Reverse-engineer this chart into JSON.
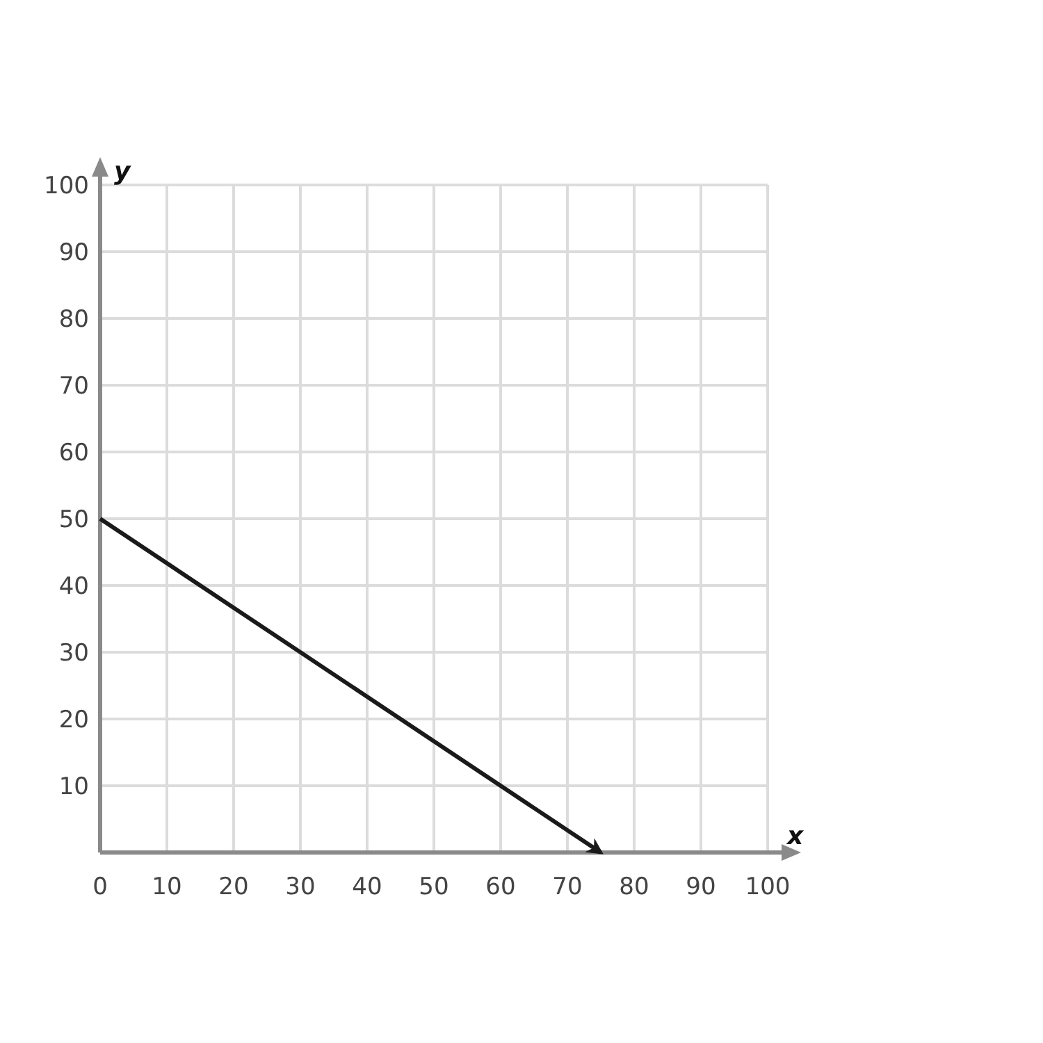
{
  "chart_data": {
    "type": "line",
    "xlabel": "x",
    "ylabel": "y",
    "xlim": [
      0,
      100
    ],
    "ylim": [
      0,
      100
    ],
    "xticks": [
      0,
      10,
      20,
      30,
      40,
      50,
      60,
      70,
      80,
      90,
      100
    ],
    "yticks": [
      {
        "value": 0,
        "label": null
      },
      10,
      20,
      30,
      40,
      50,
      60,
      70,
      80,
      90,
      100
    ],
    "grid": true,
    "marker": "none",
    "line_style": "solid",
    "series": [
      {
        "x": [
          0,
          75
        ],
        "values": [
          50,
          0
        ],
        "color": "#1a1a1a"
      }
    ]
  }
}
